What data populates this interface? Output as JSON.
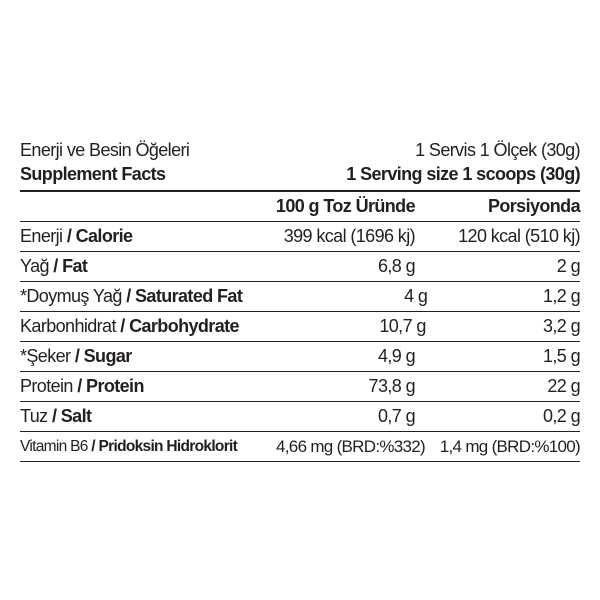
{
  "header": {
    "title_tr": "Enerji ve Besin Öğeleri",
    "serving_tr": "1 Servis 1 Ölçek (30g)",
    "title_en": "Supplement Facts",
    "serving_en": "1 Serving size 1 scoops (30g)"
  },
  "columns": [
    "",
    "100 g Toz Üründe",
    "Porsiyonda"
  ],
  "rows": [
    {
      "name_tr": "Enerji",
      "name_en": "Calorie",
      "per100": "399 kcal (1696 kj)",
      "serving": "120 kcal (510 kj)"
    },
    {
      "name_tr": "Yağ",
      "name_en": "Fat",
      "per100": "6,8 g",
      "serving": "2 g"
    },
    {
      "name_tr": "*Doymuş Yağ",
      "name_en": "Saturated Fat",
      "per100": "4 g",
      "serving": "1,2 g"
    },
    {
      "name_tr": "Karbonhidrat",
      "name_en": "Carbohydrate",
      "per100": "10,7 g",
      "serving": "3,2 g"
    },
    {
      "name_tr": "*Şeker",
      "name_en": "Sugar",
      "per100": "4,9 g",
      "serving": "1,5 g"
    },
    {
      "name_tr": "Protein",
      "name_en": "Protein",
      "per100": "73,8 g",
      "serving": "22 g"
    },
    {
      "name_tr": "Tuz",
      "name_en": "Salt",
      "per100": "0,7 g",
      "serving": "0,2 g"
    },
    {
      "name_tr": "Vitamin B6",
      "name_en": "Pridoksin Hidroklorit",
      "per100": "4,66 mg (BRD:%332)",
      "serving": "1,4 mg (BRD:%100)"
    }
  ],
  "separator": " / "
}
